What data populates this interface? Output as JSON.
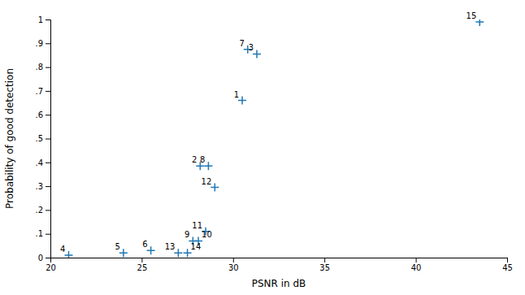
{
  "chart_data": {
    "type": "scatter",
    "xlabel": "PSNR in dB",
    "ylabel": "Probability of good detection",
    "x": [
      21.0,
      24.0,
      25.5,
      27.0,
      27.5,
      27.8,
      28.1,
      28.5,
      28.2,
      28.65,
      29.0,
      30.5,
      30.8,
      31.3,
      43.5
    ],
    "values": [
      0.01,
      0.02,
      0.03,
      0.02,
      0.02,
      0.07,
      0.07,
      0.11,
      0.385,
      0.385,
      0.295,
      0.66,
      0.875,
      0.855,
      0.99
    ],
    "labels": [
      "4",
      "5",
      "6",
      "13",
      "14",
      "9",
      "10",
      "11",
      "2",
      "8",
      "12",
      "1",
      "7",
      "3",
      "15"
    ],
    "marker": "plus",
    "xlim": [
      20,
      45
    ],
    "ylim": [
      0,
      1
    ],
    "xticks": [
      20,
      25,
      30,
      35,
      40,
      45
    ],
    "yticks": [
      0,
      {
        "value": 0.1,
        "label": ".1"
      },
      {
        "value": 0.2,
        "label": ".2"
      },
      {
        "value": 0.3,
        "label": ".3"
      },
      {
        "value": 0.4,
        "label": ".4"
      },
      {
        "value": 0.5,
        "label": ".5"
      },
      {
        "value": 0.6,
        "label": ".6"
      },
      {
        "value": 0.7,
        "label": ".7"
      },
      {
        "value": 0.8,
        "label": ".8"
      },
      {
        "value": 0.9,
        "label": ".9"
      },
      1
    ],
    "grid": false
  }
}
